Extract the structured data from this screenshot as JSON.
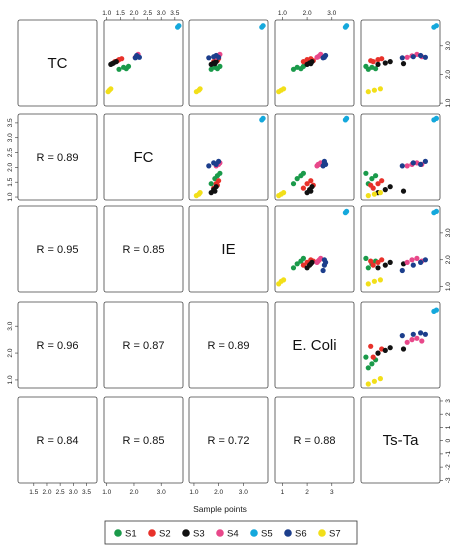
{
  "chart_data": {
    "type": "scatter",
    "title": "",
    "xlabel": "Sample points",
    "variables": [
      "TC",
      "FC",
      "IE",
      "E. Coli",
      "Ts-Ta"
    ],
    "variable_ticks": [
      [
        1.0,
        2.0,
        3.0
      ],
      [
        1.0,
        1.5,
        2.0,
        2.5,
        3.0,
        3.5
      ],
      [
        1.0,
        2.0,
        3.0
      ],
      [
        1.0,
        2.0,
        3.0
      ],
      [
        -3,
        -2,
        -1,
        0,
        1,
        2,
        3
      ]
    ],
    "variable_ticklabels": [
      [
        "1.0",
        "2.0",
        "3.0"
      ],
      [
        "1.0",
        "1.5",
        "2.0",
        "2.5",
        "3.0",
        "3.5"
      ],
      [
        "1.0",
        "2.0",
        "3.0"
      ],
      [
        "1.0",
        "2.0",
        "3.0"
      ],
      [
        "-3",
        "-2",
        "-1",
        "0",
        "1",
        "2",
        "3"
      ]
    ],
    "bottom_axis_ticks": [
      [
        "1.5",
        "2.0",
        "2.5",
        "3.0",
        "3.5"
      ],
      [
        "1.0",
        "2.0",
        "3.0"
      ],
      [
        "1.0",
        "2.0",
        "3.0"
      ],
      [
        "-3",
        "-2",
        "-1",
        "0",
        "1",
        "2",
        "3"
      ]
    ],
    "variable_ranges": [
      [
        0.9,
        3.9
      ],
      [
        0.9,
        3.8
      ],
      [
        0.8,
        4.0
      ],
      [
        0.7,
        3.9
      ],
      [
        -3.2,
        3.3
      ]
    ],
    "correlations": [
      {
        "pair": [
          "FC",
          "TC"
        ],
        "label": "R = 0.89"
      },
      {
        "pair": [
          "IE",
          "TC"
        ],
        "label": "R = 0.95"
      },
      {
        "pair": [
          "IE",
          "FC"
        ],
        "label": "R = 0.85"
      },
      {
        "pair": [
          "E. Coli",
          "TC"
        ],
        "label": "R = 0.96"
      },
      {
        "pair": [
          "E. Coli",
          "FC"
        ],
        "label": "R = 0.87"
      },
      {
        "pair": [
          "E. Coli",
          "IE"
        ],
        "label": "R = 0.89"
      },
      {
        "pair": [
          "Ts-Ta",
          "TC"
        ],
        "label": "R = 0.84"
      },
      {
        "pair": [
          "Ts-Ta",
          "FC"
        ],
        "label": "R = 0.85"
      },
      {
        "pair": [
          "Ts-Ta",
          "IE"
        ],
        "label": "R = 0.72"
      },
      {
        "pair": [
          "Ts-Ta",
          "E. Coli"
        ],
        "label": "R = 0.88"
      }
    ],
    "series": [
      {
        "name": "S1",
        "color": "#1a9a4a",
        "TC": [
          2.18,
          2.25,
          2.2,
          2.28
        ],
        "FC": [
          1.45,
          1.62,
          1.72,
          1.8
        ],
        "IE": [
          1.7,
          1.85,
          1.95,
          2.05
        ],
        "E. Coli": [
          1.45,
          1.6,
          1.75,
          1.85
        ],
        "Ts-Ta": [
          -2.6,
          -2.3,
          -2.0,
          -2.8
        ]
      },
      {
        "name": "S2",
        "color": "#e8312a",
        "TC": [
          2.45,
          2.52,
          2.55,
          2.48
        ],
        "FC": [
          1.3,
          1.45,
          1.55,
          1.4
        ],
        "IE": [
          1.8,
          1.9,
          2.0,
          1.95
        ],
        "E. Coli": [
          1.85,
          2.0,
          2.15,
          2.25
        ],
        "Ts-Ta": [
          -2.2,
          -1.8,
          -1.5,
          -2.4
        ]
      },
      {
        "name": "S3",
        "color": "#111111",
        "TC": [
          2.35,
          2.4,
          2.45,
          2.38
        ],
        "FC": [
          1.15,
          1.25,
          1.35,
          1.2
        ],
        "IE": [
          1.7,
          1.8,
          1.9,
          1.85
        ],
        "E. Coli": [
          2.0,
          2.1,
          2.2,
          2.15
        ],
        "Ts-Ta": [
          -1.8,
          -1.2,
          -0.8,
          0.3
        ]
      },
      {
        "name": "S4",
        "color": "#e8488a",
        "TC": [
          2.6,
          2.65,
          2.7,
          2.62
        ],
        "FC": [
          2.05,
          2.1,
          2.15,
          2.1
        ],
        "IE": [
          1.9,
          2.0,
          2.05,
          1.95
        ],
        "E. Coli": [
          2.4,
          2.5,
          2.55,
          2.45
        ],
        "Ts-Ta": [
          0.6,
          1.0,
          1.4,
          1.8
        ]
      },
      {
        "name": "S5",
        "color": "#14a8dc",
        "TC": [
          3.65,
          3.7
        ],
        "FC": [
          3.6,
          3.65
        ],
        "IE": [
          3.75,
          3.8
        ],
        "E. Coli": [
          3.55,
          3.6
        ],
        "Ts-Ta": [
          2.8,
          3.0
        ]
      },
      {
        "name": "S6",
        "color": "#1c3e8c",
        "TC": [
          2.58,
          2.62,
          2.66,
          2.6
        ],
        "FC": [
          2.05,
          2.15,
          2.1,
          2.2
        ],
        "IE": [
          1.6,
          1.8,
          1.9,
          2.0
        ],
        "E. Coli": [
          2.65,
          2.7,
          2.75,
          2.7
        ],
        "Ts-Ta": [
          0.2,
          1.1,
          1.7,
          2.1
        ]
      },
      {
        "name": "S7",
        "color": "#f2df19",
        "TC": [
          1.4,
          1.45,
          1.5
        ],
        "FC": [
          1.05,
          1.1,
          1.15
        ],
        "IE": [
          1.1,
          1.2,
          1.25
        ],
        "E. Coli": [
          0.85,
          0.95,
          1.05
        ],
        "Ts-Ta": [
          -2.6,
          -2.1,
          -1.6
        ]
      }
    ]
  }
}
